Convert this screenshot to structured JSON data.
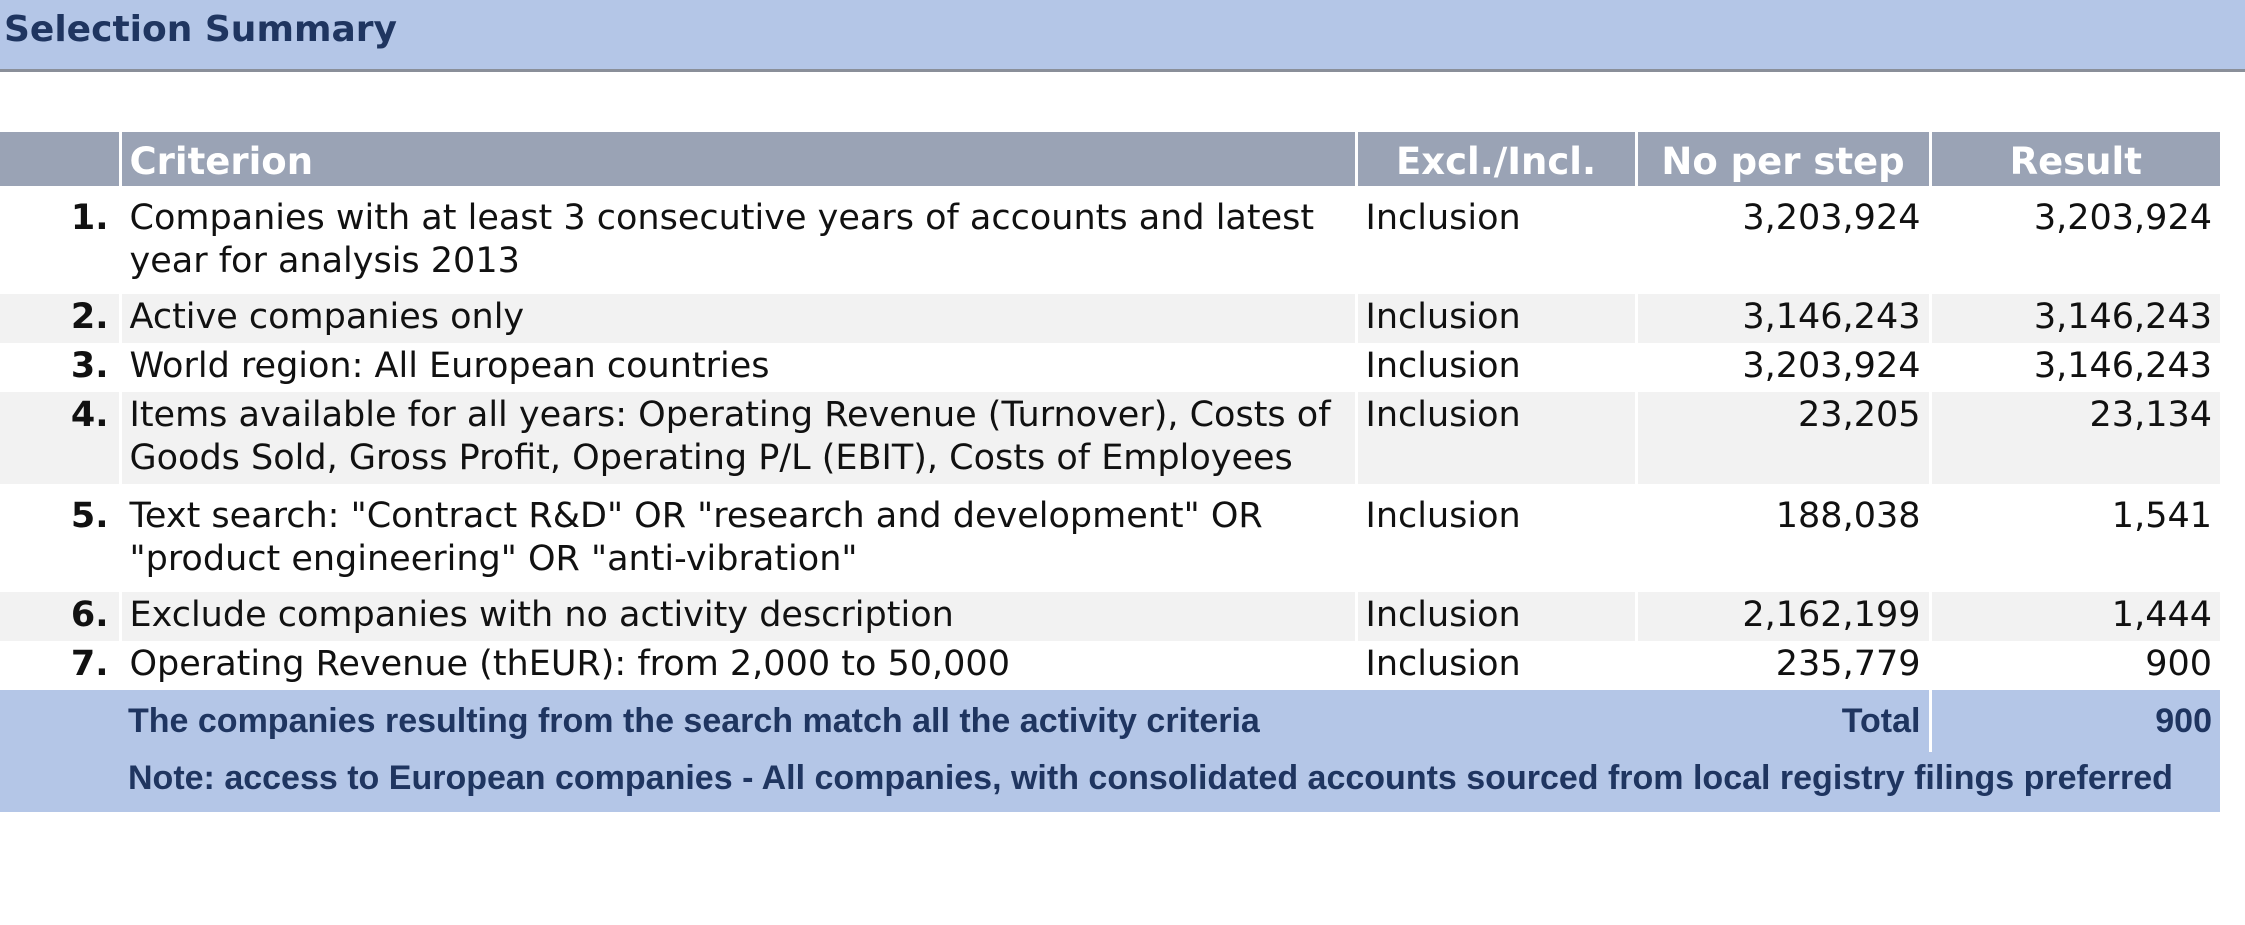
{
  "header": {
    "title": "Selection Summary"
  },
  "table": {
    "columns": {
      "number": "",
      "criterion": "Criterion",
      "excl_incl": "Excl./Incl.",
      "no_per_step": "No per step",
      "result": "Result"
    },
    "rows": [
      {
        "number": "1.",
        "criterion": "Companies with at least 3 consecutive years of accounts and latest year for analysis 2013",
        "excl_incl": "Inclusion",
        "no_per_step": "3,203,924",
        "result": "3,203,924"
      },
      {
        "number": "2.",
        "criterion": "Active companies only",
        "excl_incl": "Inclusion",
        "no_per_step": "3,146,243",
        "result": "3,146,243"
      },
      {
        "number": "3.",
        "criterion": "World region: All European countries",
        "excl_incl": "Inclusion",
        "no_per_step": "3,203,924",
        "result": "3,146,243"
      },
      {
        "number": "4.",
        "criterion": "Items available for all years: Operating Revenue (Turnover), Costs of Goods Sold, Gross Profit, Operating P/L (EBIT), Costs of Employees",
        "excl_incl": "Inclusion",
        "no_per_step": "23,205",
        "result": "23,134"
      },
      {
        "number": "5.",
        "criterion": "Text search: \"Contract R&D\" OR \"research and development\" OR \"product engineering\" OR \"anti-vibration\"",
        "excl_incl": "Inclusion",
        "no_per_step": "188,038",
        "result": "1,541"
      },
      {
        "number": "6.",
        "criterion": "Exclude companies with no activity description",
        "excl_incl": "Inclusion",
        "no_per_step": "2,162,199",
        "result": "1,444"
      },
      {
        "number": "7.",
        "criterion": "Operating Revenue (thEUR): from 2,000 to 50,000",
        "excl_incl": "Inclusion",
        "no_per_step": "235,779",
        "result": "900"
      }
    ],
    "footer": {
      "match_text": "The companies resulting from the search match all the activity criteria",
      "total_label": "Total",
      "total_value": "900",
      "note": "Note: access to European companies - All companies, with consolidated accounts sourced from local registry filings preferred"
    }
  },
  "colors": {
    "header_bg": "#b4c6e7",
    "header_text": "#1f3560",
    "column_header_bg": "#9aa3b5",
    "row_alt_bg": "#f2f2f2"
  }
}
